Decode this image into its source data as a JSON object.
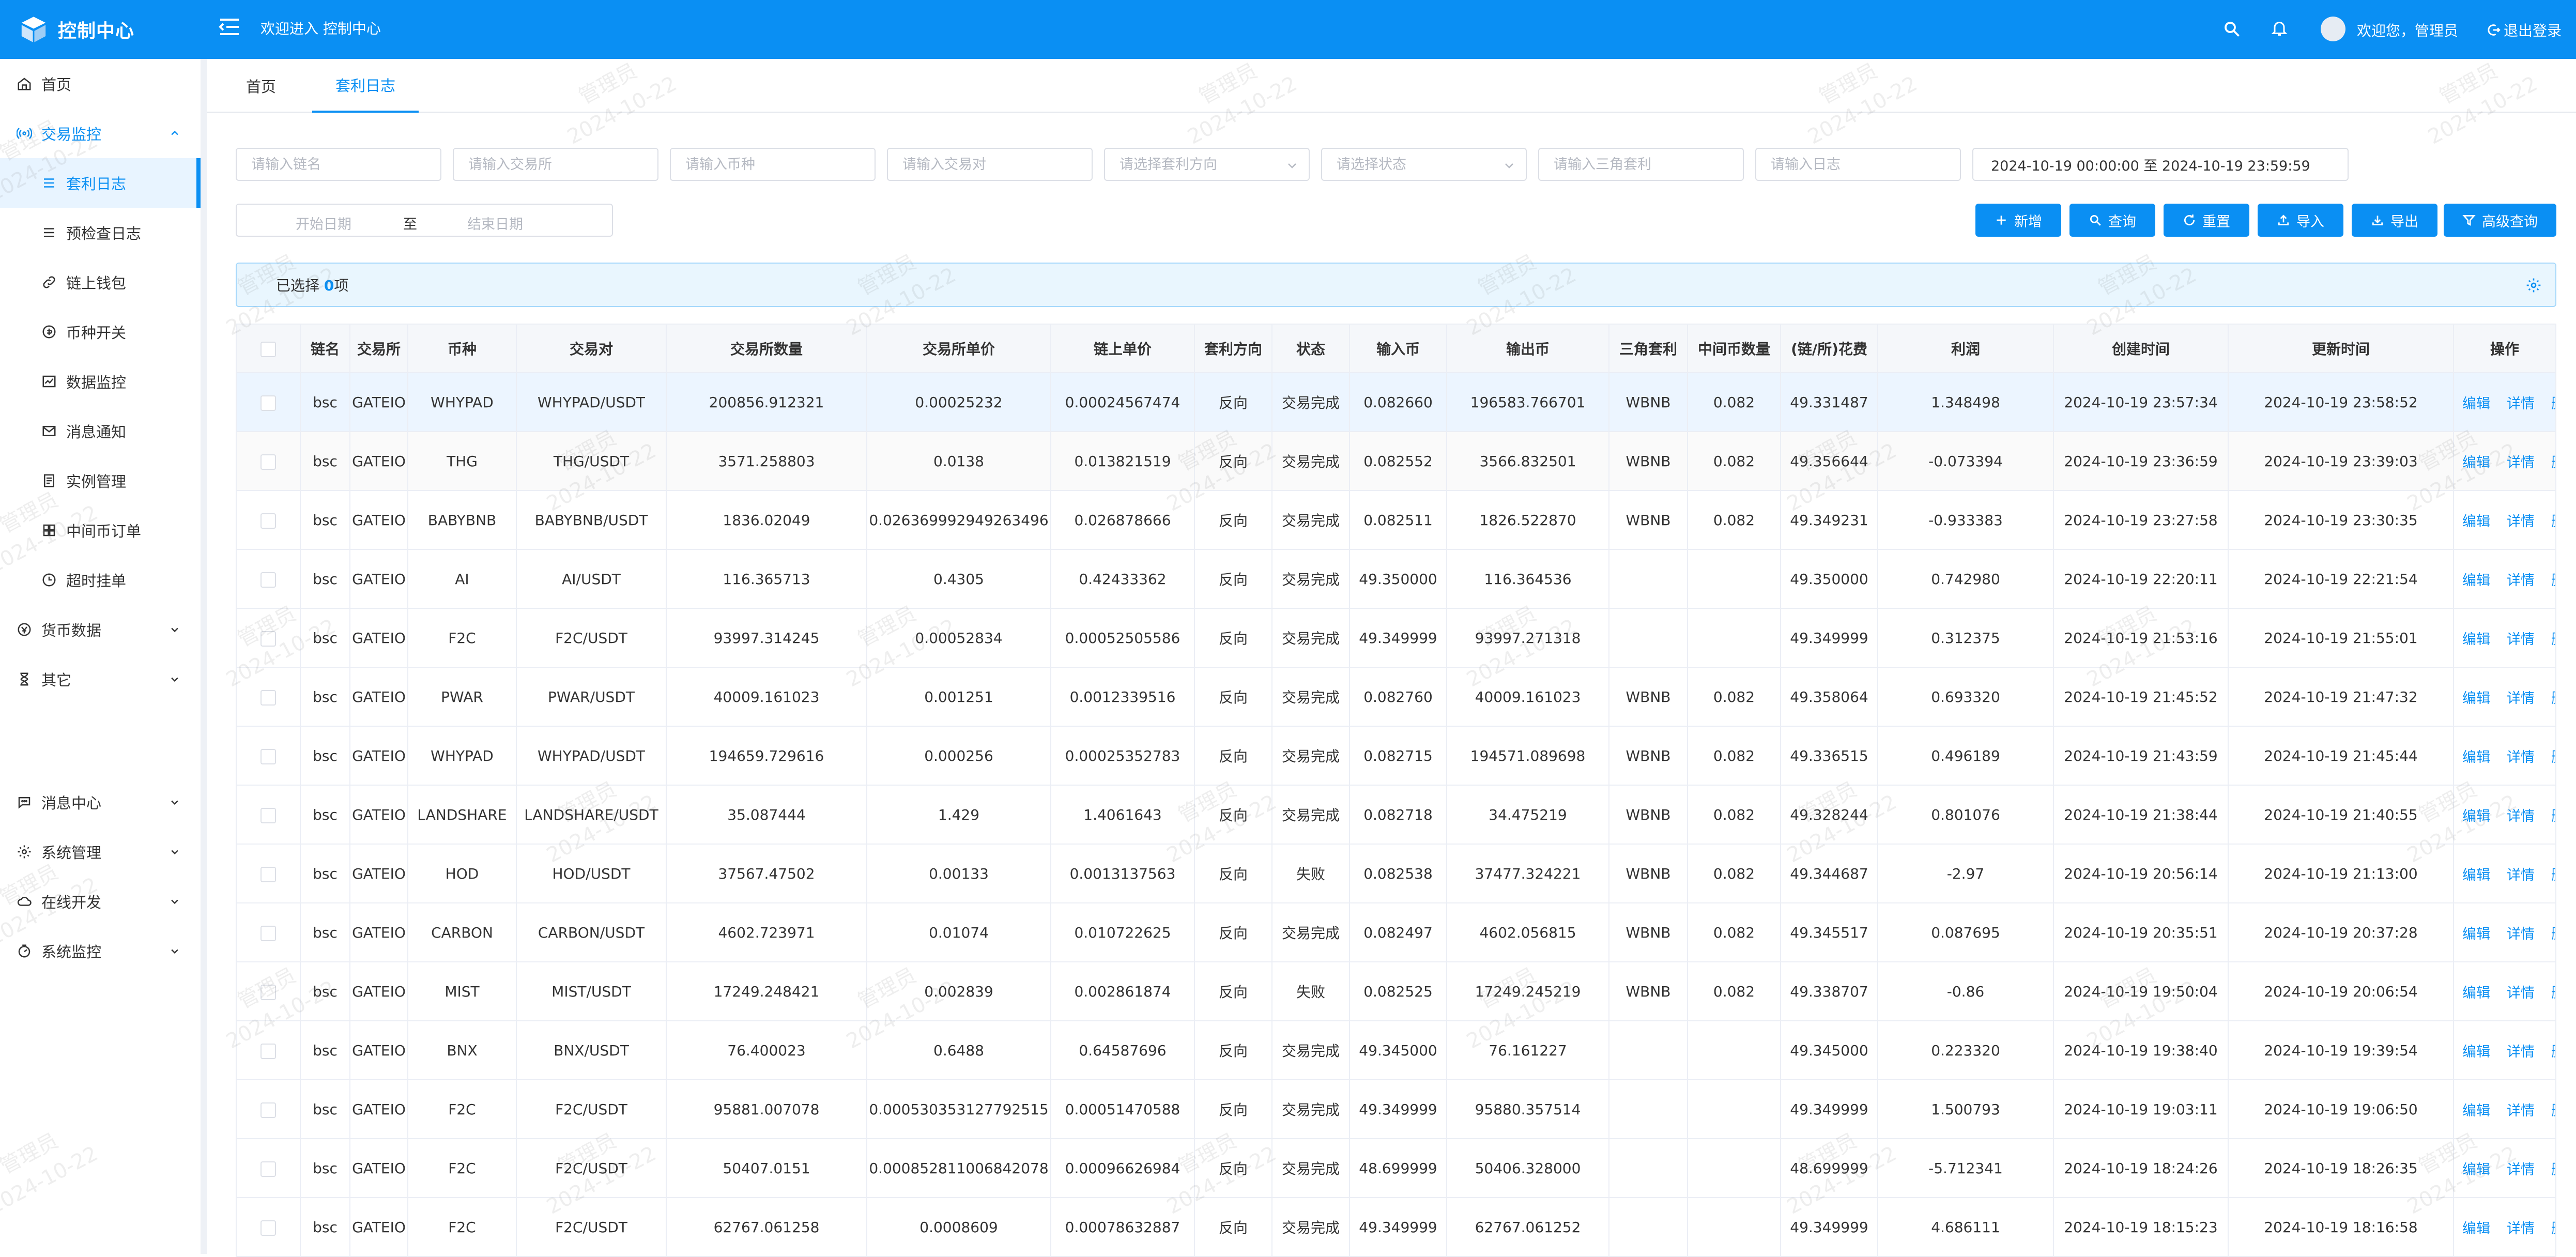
{
  "app": {
    "title": "控制中心",
    "welcome": "欢迎进入 控制中心"
  },
  "topbar": {
    "user_greeting": "欢迎您，管理员",
    "logout": "退出登录"
  },
  "sidebar": {
    "items": [
      {
        "label": "首页",
        "icon": "home-icon"
      },
      {
        "label": "交易监控",
        "icon": "broadcast-icon"
      },
      {
        "label": "套利日志",
        "icon": "list-icon"
      },
      {
        "label": "预检查日志",
        "icon": "list-icon"
      },
      {
        "label": "链上钱包",
        "icon": "link-icon"
      },
      {
        "label": "币种开关",
        "icon": "coin-icon"
      },
      {
        "label": "数据监控",
        "icon": "chart-icon"
      },
      {
        "label": "消息通知",
        "icon": "mail-icon"
      },
      {
        "label": "实例管理",
        "icon": "document-icon"
      },
      {
        "label": "中间币订单",
        "icon": "grid-icon"
      },
      {
        "label": "超时挂单",
        "icon": "clock-icon"
      },
      {
        "label": "货币数据",
        "icon": "currency-icon"
      },
      {
        "label": "其它",
        "icon": "hourglass-icon"
      },
      {
        "label": "消息中心",
        "icon": "chat-icon"
      },
      {
        "label": "系统管理",
        "icon": "gear-icon"
      },
      {
        "label": "在线开发",
        "icon": "cloud-icon"
      },
      {
        "label": "系统监控",
        "icon": "monitor-icon"
      }
    ]
  },
  "tabs": [
    {
      "label": "首页"
    },
    {
      "label": "套利日志"
    }
  ],
  "filters": {
    "chain_placeholder": "请输入链名",
    "exchange_placeholder": "请输入交易所",
    "coin_placeholder": "请输入币种",
    "pair_placeholder": "请输入交易对",
    "direction_placeholder": "请选择套利方向",
    "status_placeholder": "请选择状态",
    "triangle_placeholder": "请输入三角套利",
    "log_placeholder": "请输入日志",
    "datetime_range": "2024-10-19 00:00:00 至 2024-10-19 23:59:59",
    "start_date": "开始日期",
    "range_sep": "至",
    "end_date": "结束日期"
  },
  "buttons": {
    "add": "新增",
    "query": "查询",
    "reset": "重置",
    "import": "导入",
    "export": "导出",
    "advanced": "高级查询"
  },
  "selection": {
    "prefix": "已选择 ",
    "count": "0",
    "suffix": "项"
  },
  "table": {
    "headers": [
      "链名",
      "交易所",
      "币种",
      "交易对",
      "交易所数量",
      "交易所单价",
      "链上单价",
      "套利方向",
      "状态",
      "输入币",
      "输出币",
      "三角套利",
      "中间币数量",
      "(链/所)花费",
      "利润",
      "创建时间",
      "更新时间",
      "操作"
    ],
    "actions": {
      "edit": "编辑",
      "detail": "详情",
      "delete": "删除"
    },
    "rows": [
      [
        "bsc",
        "GATEIO",
        "WHYPAD",
        "WHYPAD/USDT",
        "200856.912321",
        "0.00025232",
        "0.00024567474",
        "反向",
        "交易完成",
        "0.082660",
        "196583.766701",
        "WBNB",
        "0.082",
        "49.331487",
        "1.348498",
        "2024-10-19 23:57:34",
        "2024-10-19 23:58:52"
      ],
      [
        "bsc",
        "GATEIO",
        "THG",
        "THG/USDT",
        "3571.258803",
        "0.0138",
        "0.013821519",
        "反向",
        "交易完成",
        "0.082552",
        "3566.832501",
        "WBNB",
        "0.082",
        "49.356644",
        "-0.073394",
        "2024-10-19 23:36:59",
        "2024-10-19 23:39:03"
      ],
      [
        "bsc",
        "GATEIO",
        "BABYBNB",
        "BABYBNB/USDT",
        "1836.02049",
        "0.026369992949263496",
        "0.026878666",
        "反向",
        "交易完成",
        "0.082511",
        "1826.522870",
        "WBNB",
        "0.082",
        "49.349231",
        "-0.933383",
        "2024-10-19 23:27:58",
        "2024-10-19 23:30:35"
      ],
      [
        "bsc",
        "GATEIO",
        "AI",
        "AI/USDT",
        "116.365713",
        "0.4305",
        "0.42433362",
        "反向",
        "交易完成",
        "49.350000",
        "116.364536",
        "",
        "",
        "49.350000",
        "0.742980",
        "2024-10-19 22:20:11",
        "2024-10-19 22:21:54"
      ],
      [
        "bsc",
        "GATEIO",
        "F2C",
        "F2C/USDT",
        "93997.314245",
        "0.00052834",
        "0.00052505586",
        "反向",
        "交易完成",
        "49.349999",
        "93997.271318",
        "",
        "",
        "49.349999",
        "0.312375",
        "2024-10-19 21:53:16",
        "2024-10-19 21:55:01"
      ],
      [
        "bsc",
        "GATEIO",
        "PWAR",
        "PWAR/USDT",
        "40009.161023",
        "0.001251",
        "0.0012339516",
        "反向",
        "交易完成",
        "0.082760",
        "40009.161023",
        "WBNB",
        "0.082",
        "49.358064",
        "0.693320",
        "2024-10-19 21:45:52",
        "2024-10-19 21:47:32"
      ],
      [
        "bsc",
        "GATEIO",
        "WHYPAD",
        "WHYPAD/USDT",
        "194659.729616",
        "0.000256",
        "0.00025352783",
        "反向",
        "交易完成",
        "0.082715",
        "194571.089698",
        "WBNB",
        "0.082",
        "49.336515",
        "0.496189",
        "2024-10-19 21:43:59",
        "2024-10-19 21:45:44"
      ],
      [
        "bsc",
        "GATEIO",
        "LANDSHARE",
        "LANDSHARE/USDT",
        "35.087444",
        "1.429",
        "1.4061643",
        "反向",
        "交易完成",
        "0.082718",
        "34.475219",
        "WBNB",
        "0.082",
        "49.328244",
        "0.801076",
        "2024-10-19 21:38:44",
        "2024-10-19 21:40:55"
      ],
      [
        "bsc",
        "GATEIO",
        "HOD",
        "HOD/USDT",
        "37567.47502",
        "0.00133",
        "0.0013137563",
        "反向",
        "失败",
        "0.082538",
        "37477.324221",
        "WBNB",
        "0.082",
        "49.344687",
        "-2.97",
        "2024-10-19 20:56:14",
        "2024-10-19 21:13:00"
      ],
      [
        "bsc",
        "GATEIO",
        "CARBON",
        "CARBON/USDT",
        "4602.723971",
        "0.01074",
        "0.010722625",
        "反向",
        "交易完成",
        "0.082497",
        "4602.056815",
        "WBNB",
        "0.082",
        "49.345517",
        "0.087695",
        "2024-10-19 20:35:51",
        "2024-10-19 20:37:28"
      ],
      [
        "bsc",
        "GATEIO",
        "MIST",
        "MIST/USDT",
        "17249.248421",
        "0.002839",
        "0.002861874",
        "反向",
        "失败",
        "0.082525",
        "17249.245219",
        "WBNB",
        "0.082",
        "49.338707",
        "-0.86",
        "2024-10-19 19:50:04",
        "2024-10-19 20:06:54"
      ],
      [
        "bsc",
        "GATEIO",
        "BNX",
        "BNX/USDT",
        "76.400023",
        "0.6488",
        "0.64587696",
        "反向",
        "交易完成",
        "49.345000",
        "76.161227",
        "",
        "",
        "49.345000",
        "0.223320",
        "2024-10-19 19:38:40",
        "2024-10-19 19:39:54"
      ],
      [
        "bsc",
        "GATEIO",
        "F2C",
        "F2C/USDT",
        "95881.007078",
        "0.000530353127792515",
        "0.00051470588",
        "反向",
        "交易完成",
        "49.349999",
        "95880.357514",
        "",
        "",
        "49.349999",
        "1.500793",
        "2024-10-19 19:03:11",
        "2024-10-19 19:06:50"
      ],
      [
        "bsc",
        "GATEIO",
        "F2C",
        "F2C/USDT",
        "50407.0151",
        "0.000852811006842078",
        "0.00096626984",
        "反向",
        "交易完成",
        "48.699999",
        "50406.328000",
        "",
        "",
        "48.699999",
        "-5.712341",
        "2024-10-19 18:24:26",
        "2024-10-19 18:26:35"
      ],
      [
        "bsc",
        "GATEIO",
        "F2C",
        "F2C/USDT",
        "62767.061258",
        "0.0008609",
        "0.00078632887",
        "反向",
        "交易完成",
        "49.349999",
        "62767.061252",
        "",
        "",
        "49.349999",
        "4.686111",
        "2024-10-19 18:15:23",
        "2024-10-19 18:16:58"
      ]
    ]
  },
  "watermark": {
    "line1": "管理员",
    "line2": "2024-10-22"
  },
  "colors": {
    "primary": "#0a8ff3",
    "row_highlight": "#ecf5ff"
  }
}
